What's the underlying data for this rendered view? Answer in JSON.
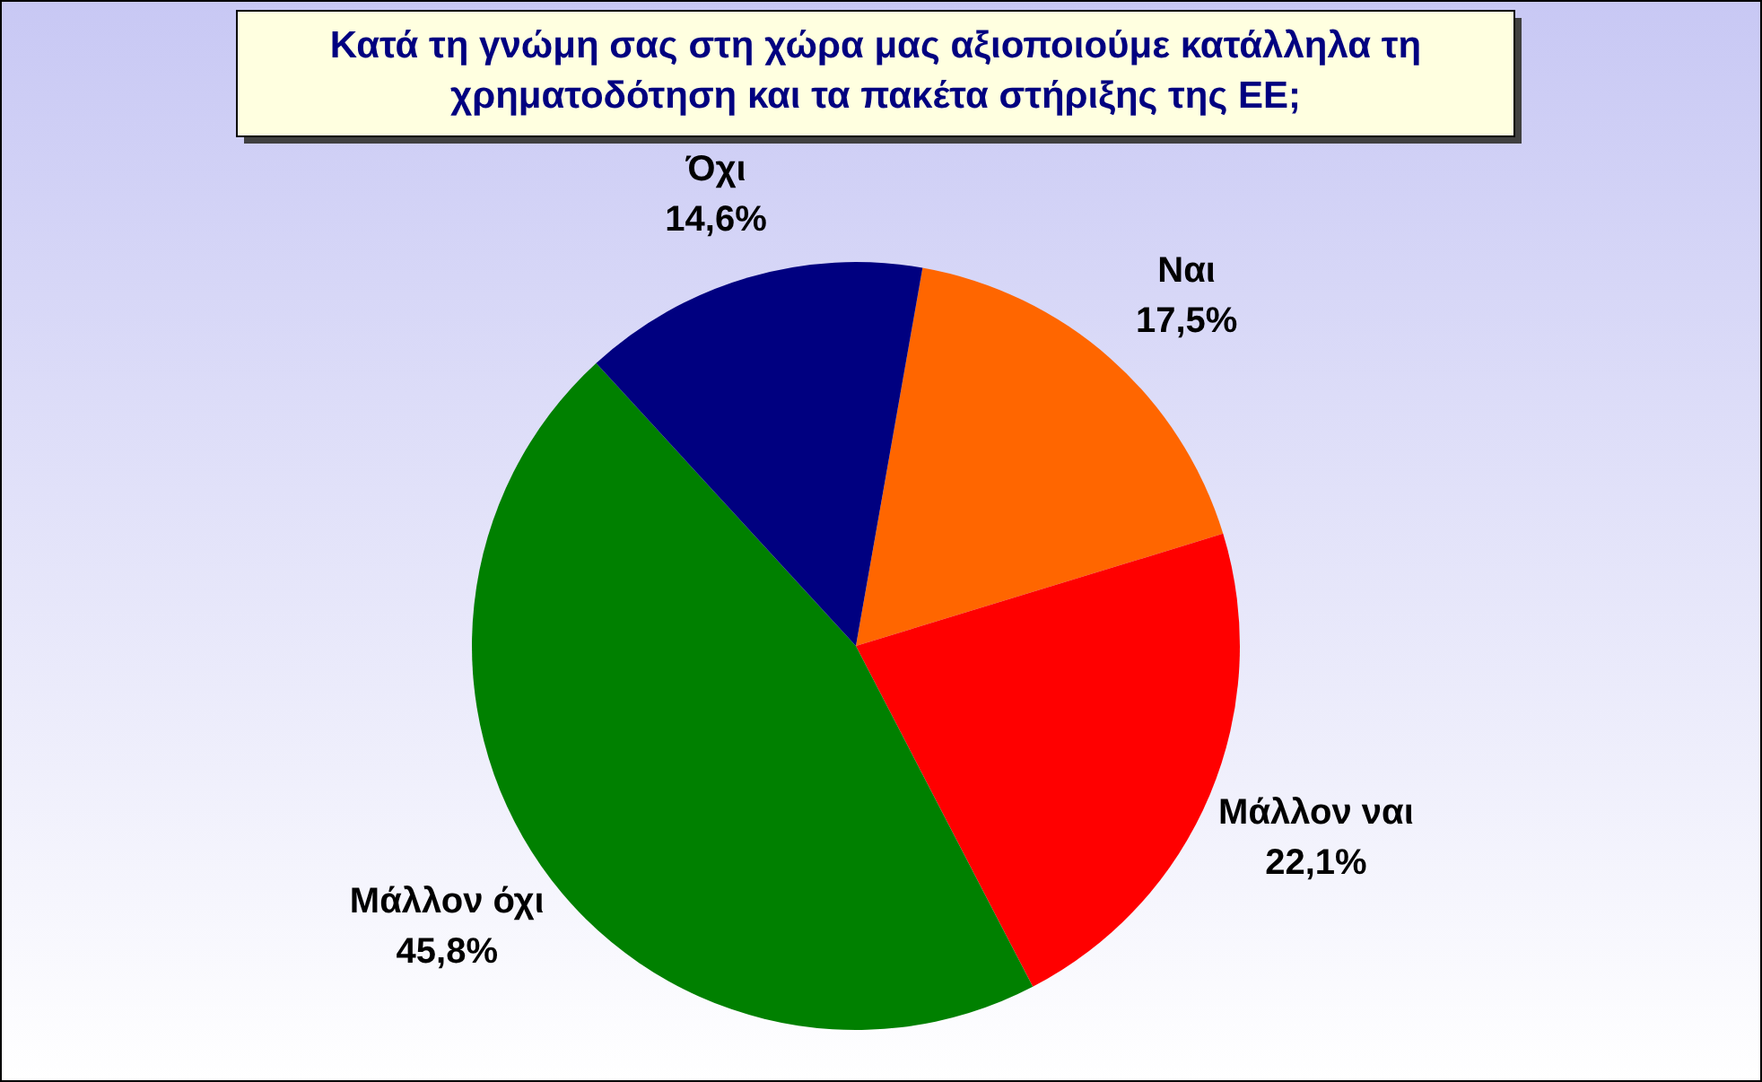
{
  "chart_data": {
    "type": "pie",
    "title": "Κατά τη γνώμη σας στη χώρα μας αξιοποιούμε κατάλληλα τη χρηματοδότηση και τα πακέτα στήριξης της ΕΕ;",
    "categories": [
      "Ναι",
      "Μάλλον ναι",
      "Μάλλον όχι",
      "Όχι"
    ],
    "values": [
      17.5,
      22.1,
      45.8,
      14.6
    ],
    "value_labels": [
      "17,5%",
      "22,1%",
      "45,8%",
      "14,6%"
    ],
    "colors": [
      "#ff6600",
      "#ff0000",
      "#008000",
      "#000080"
    ]
  }
}
